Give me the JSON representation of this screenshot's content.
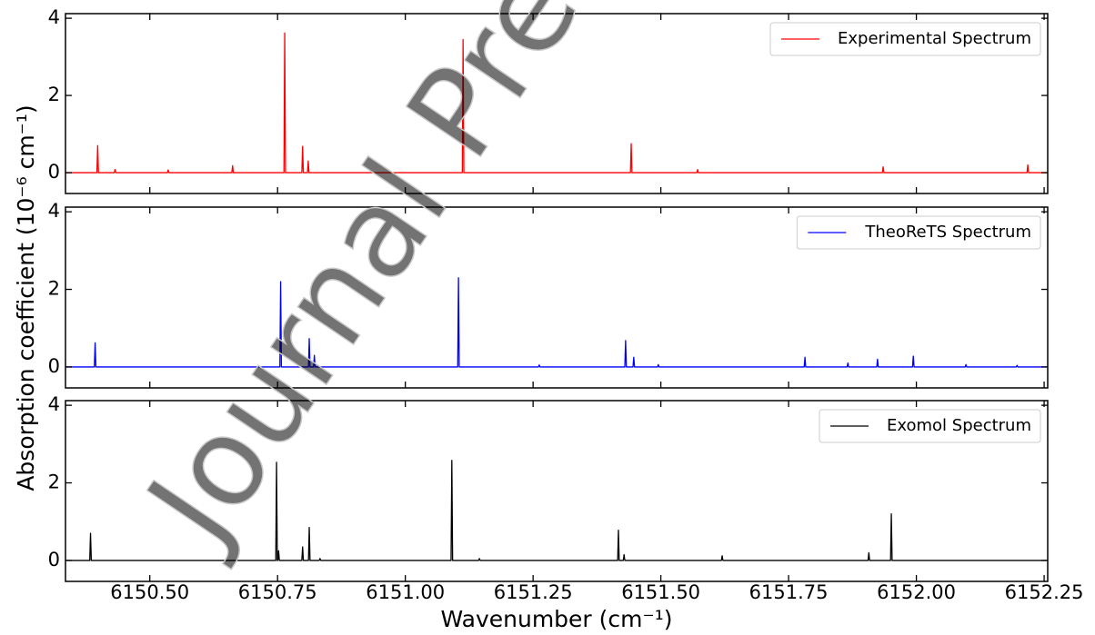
{
  "xlabel": "Wavenumber (cm⁻¹)",
  "ylabel": "Absorption coefficient (10⁻⁶ cm⁻¹)",
  "watermark": "Journal Pre-proof",
  "xlim": [
    6150.335,
    6152.257
  ],
  "xticks": [
    {
      "value": 6150.5,
      "label": "6150.50"
    },
    6150.75,
    {
      "value": 6151.0,
      "label": "6151.00"
    },
    6151.25,
    {
      "value": 6151.5,
      "label": "6151.50"
    },
    6151.75,
    {
      "value": 6152.0,
      "label": "6152.00"
    },
    6152.25
  ],
  "chart_data": [
    {
      "type": "line",
      "ylim": [
        -0.54,
        4.12
      ],
      "yticks": [
        0,
        2,
        4
      ],
      "legend": "upper right",
      "series": [
        {
          "name": "Experimental Spectrum",
          "color": "#ff0000",
          "x": [
            6150.335,
            6150.3965,
            6150.398,
            6150.3995,
            6150.4305,
            6150.432,
            6150.4335,
            6150.5345,
            6150.536,
            6150.5375,
            6150.6605,
            6150.662,
            6150.6635,
            6150.7625,
            6150.764,
            6150.7655,
            6150.7975,
            6150.799,
            6150.8005,
            6150.8085,
            6150.81,
            6150.8115,
            6151.1115,
            6151.113,
            6151.1145,
            6151.4405,
            6151.442,
            6151.4435,
            6151.5705,
            6151.572,
            6151.5735,
            6151.9335,
            6151.935,
            6151.9365,
            6152.2165,
            6152.218,
            6152.2195,
            6152.257
          ],
          "values": [
            0,
            0,
            0.7,
            0,
            0,
            0.08,
            0,
            0,
            0.07,
            0,
            0,
            0.18,
            0,
            0,
            3.62,
            0,
            0,
            0.68,
            0,
            0,
            0.3,
            0,
            0,
            3.45,
            0,
            0,
            0.75,
            0,
            0,
            0.08,
            0,
            0,
            0.15,
            0,
            0,
            0.2,
            0,
            0
          ]
        }
      ]
    },
    {
      "type": "line",
      "ylim": [
        -0.54,
        4.12
      ],
      "yticks": [
        0,
        2,
        4
      ],
      "legend": "upper right",
      "series": [
        {
          "name": "TheoReTS Spectrum",
          "color": "#0000ff",
          "x": [
            6150.335,
            6150.3915,
            6150.393,
            6150.3945,
            6150.7545,
            6150.756,
            6150.7575,
            6150.8105,
            6150.812,
            6150.8135,
            6150.8205,
            6150.822,
            6150.8235,
            6151.1025,
            6151.104,
            6151.1055,
            6151.2605,
            6151.262,
            6151.2635,
            6151.4295,
            6151.431,
            6151.4325,
            6151.4455,
            6151.447,
            6151.4485,
            6151.4935,
            6151.495,
            6151.4965,
            6151.7805,
            6151.782,
            6151.7835,
            6151.8645,
            6151.866,
            6151.8675,
            6151.9225,
            6151.924,
            6151.9255,
            6151.9925,
            6151.994,
            6151.9955,
            6152.0955,
            6152.097,
            6152.0985,
            6152.1955,
            6152.197,
            6152.1985,
            6152.257
          ],
          "values": [
            0,
            0,
            0.62,
            0,
            0,
            2.2,
            0,
            0,
            0.73,
            0,
            0,
            0.3,
            0,
            0,
            2.3,
            0,
            0,
            0.05,
            0,
            0,
            0.68,
            0,
            0,
            0.25,
            0,
            0,
            0.06,
            0,
            0,
            0.25,
            0,
            0,
            0.1,
            0,
            0,
            0.2,
            0,
            0,
            0.28,
            0,
            0,
            0.06,
            0,
            0,
            0.04,
            0,
            0
          ]
        }
      ]
    },
    {
      "type": "line",
      "ylim": [
        -0.54,
        4.12
      ],
      "yticks": [
        0,
        2,
        4
      ],
      "legend": "upper right",
      "series": [
        {
          "name": "Exomol Spectrum",
          "color": "#000000",
          "x": [
            6150.335,
            6150.3825,
            6150.384,
            6150.3855,
            6150.7465,
            6150.748,
            6150.7495,
            6150.7505,
            6150.752,
            6150.7535,
            6150.7975,
            6150.799,
            6150.8005,
            6150.8105,
            6150.812,
            6150.8135,
            6150.8315,
            6150.833,
            6150.8345,
            6151.0895,
            6151.091,
            6151.0925,
            6151.1435,
            6151.145,
            6151.1465,
            6151.4155,
            6151.417,
            6151.4185,
            6151.4265,
            6151.428,
            6151.4295,
            6151.6185,
            6151.62,
            6151.6215,
            6151.9055,
            6151.907,
            6151.9085,
            6151.9495,
            6151.951,
            6151.9525,
            6152.257
          ],
          "values": [
            0,
            0,
            0.7,
            0,
            0,
            2.53,
            0,
            0,
            0.25,
            0,
            0,
            0.35,
            0,
            0,
            0.85,
            0,
            0,
            0.05,
            0,
            0,
            2.58,
            0,
            0,
            0.05,
            0,
            0,
            0.78,
            0,
            0,
            0.15,
            0,
            0,
            0.12,
            0,
            0,
            0.2,
            0,
            0,
            1.2,
            0,
            0
          ]
        }
      ]
    }
  ]
}
